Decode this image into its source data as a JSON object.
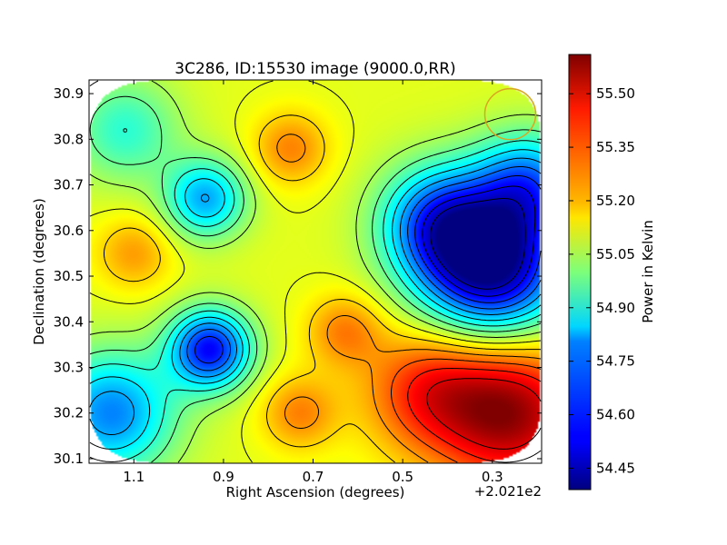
{
  "chart_data": {
    "type": "heatmap",
    "title": "3C286, ID:15530 image (9000.0,RR)",
    "xlabel": "Right Ascension (degrees)",
    "ylabel": "Declination (degrees)",
    "x_offset_label": "+2.021e2",
    "x_ticks": [
      {
        "value": 1.1,
        "label": "1.1"
      },
      {
        "value": 0.9,
        "label": "0.9"
      },
      {
        "value": 0.7,
        "label": "0.7"
      },
      {
        "value": 0.5,
        "label": "0.5"
      },
      {
        "value": 0.3,
        "label": "0.3"
      }
    ],
    "y_ticks": [
      {
        "value": 30.1,
        "label": "30.1"
      },
      {
        "value": 30.2,
        "label": "30.2"
      },
      {
        "value": 30.3,
        "label": "30.3"
      },
      {
        "value": 30.4,
        "label": "30.4"
      },
      {
        "value": 30.5,
        "label": "30.5"
      },
      {
        "value": 30.6,
        "label": "30.6"
      },
      {
        "value": 30.7,
        "label": "30.7"
      },
      {
        "value": 30.8,
        "label": "30.8"
      },
      {
        "value": 30.9,
        "label": "30.9"
      }
    ],
    "xlim": [
      1.2,
      0.19
    ],
    "ylim": [
      30.09,
      30.93
    ],
    "x_inverted": true,
    "colorbar": {
      "label": "Power in Kelvin",
      "colormap": "jet",
      "vmin": 54.39,
      "vmax": 55.61,
      "ticks": [
        {
          "value": 54.45,
          "label": "54.45"
        },
        {
          "value": 54.6,
          "label": "54.60"
        },
        {
          "value": 54.75,
          "label": "54.75"
        },
        {
          "value": 54.9,
          "label": "54.90"
        },
        {
          "value": 55.05,
          "label": "55.05"
        },
        {
          "value": 55.2,
          "label": "55.20"
        },
        {
          "value": 55.35,
          "label": "55.35"
        },
        {
          "value": 55.5,
          "label": "55.50"
        }
      ]
    },
    "features": [
      {
        "kind": "max",
        "ra": 0.26,
        "dec": 30.2,
        "value": 55.58
      },
      {
        "kind": "max",
        "ra": 0.75,
        "dec": 30.78,
        "value": 55.3
      },
      {
        "kind": "max",
        "ra": 0.73,
        "dec": 30.2,
        "value": 55.3
      },
      {
        "kind": "max",
        "ra": 1.1,
        "dec": 30.55,
        "value": 55.27
      },
      {
        "kind": "max",
        "ra": 0.63,
        "dec": 30.38,
        "value": 55.3
      },
      {
        "kind": "min",
        "ra": 0.3,
        "dec": 30.52,
        "value": 54.4
      },
      {
        "kind": "min",
        "ra": 0.93,
        "dec": 30.34,
        "value": 54.55
      },
      {
        "kind": "min",
        "ra": 0.94,
        "dec": 30.67,
        "value": 54.75
      }
    ],
    "beam_marker": {
      "ra": 0.26,
      "dec": 30.855,
      "color": "#daa520"
    },
    "contours": "black",
    "grid": false
  }
}
